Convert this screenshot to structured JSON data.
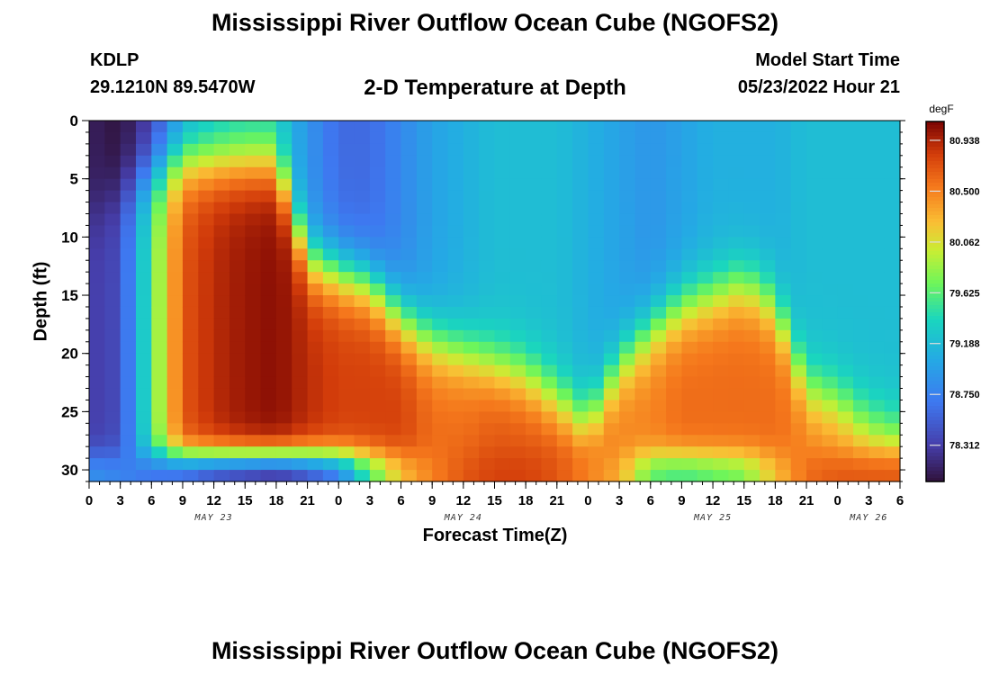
{
  "header": {
    "title": "Mississippi River Outflow Ocean Cube (NGOFS2)",
    "station": "KDLP",
    "coordinates": "29.1210N  89.5470W",
    "subtitle": "2-D Temperature at Depth",
    "model_start_label": "Model Start Time",
    "model_start_value": "05/23/2022 Hour 21"
  },
  "footer": {
    "title": "Mississippi River Outflow Ocean Cube (NGOFS2)"
  },
  "chart_data": {
    "type": "heatmap",
    "xlabel": "Forecast Time(Z)",
    "ylabel": "Depth (ft)",
    "x_ticks": [
      "0",
      "3",
      "6",
      "9",
      "12",
      "15",
      "18",
      "21",
      "0",
      "3",
      "6",
      "9",
      "12",
      "15",
      "18",
      "21",
      "0",
      "3",
      "6",
      "9",
      "12",
      "15",
      "18",
      "21",
      "0",
      "3",
      "6"
    ],
    "date_labels": [
      {
        "label": "MAY 23",
        "hour": 12
      },
      {
        "label": "MAY 24",
        "hour": 36
      },
      {
        "label": "MAY 25",
        "hour": 60
      },
      {
        "label": "MAY 26",
        "hour": 75
      }
    ],
    "x_range_hours": [
      0,
      78
    ],
    "y_ticks": [
      0,
      5,
      10,
      15,
      20,
      25,
      30
    ],
    "y_range_ft": [
      0,
      31
    ],
    "colorbar": {
      "unit": "degF",
      "min": 78.0,
      "max": 81.1,
      "tick_labels": [
        "80.938",
        "80.500",
        "80.062",
        "79.625",
        "79.188",
        "78.750",
        "78.312"
      ]
    },
    "profiles": [
      {
        "hour": 0,
        "top": 78.1,
        "mid": 78.3,
        "thermo": 5,
        "bottom_cool": 78.9
      },
      {
        "hour": 3,
        "top": 78.0,
        "mid": 78.4,
        "thermo": 3,
        "bottom_cool": 78.8
      },
      {
        "hour": 6,
        "top": 78.3,
        "mid": 79.6,
        "thermo": 1.5,
        "bottom_cool": 78.6
      },
      {
        "hour": 9,
        "top": 79.0,
        "mid": 80.7,
        "thermo": 0.5,
        "bottom_cool": 78.5
      },
      {
        "hour": 12,
        "top": 79.2,
        "mid": 80.9,
        "thermo": 0.5,
        "bottom_cool": 78.3
      },
      {
        "hour": 15,
        "top": 79.3,
        "mid": 81.0,
        "thermo": 0.5,
        "bottom_cool": 78.2
      },
      {
        "hour": 18,
        "top": 79.3,
        "mid": 81.05,
        "thermo": 0.6,
        "bottom_cool": 78.1
      },
      {
        "hour": 21,
        "top": 78.9,
        "mid": 80.9,
        "thermo": 9,
        "bottom_cool": 78.3
      },
      {
        "hour": 24,
        "top": 78.6,
        "mid": 80.8,
        "thermo": 10,
        "bottom_cool": 78.6
      },
      {
        "hour": 27,
        "top": 78.6,
        "mid": 80.8,
        "thermo": 11,
        "bottom_cool": 79.5
      },
      {
        "hour": 30,
        "top": 78.8,
        "mid": 80.8,
        "thermo": 14,
        "bottom_cool": 80.2
      },
      {
        "hour": 33,
        "top": 79.0,
        "mid": 80.6,
        "thermo": 16,
        "bottom_cool": 80.5
      },
      {
        "hour": 36,
        "top": 79.1,
        "mid": 80.6,
        "thermo": 17,
        "bottom_cool": 80.7
      },
      {
        "hour": 39,
        "top": 79.2,
        "mid": 80.7,
        "thermo": 18,
        "bottom_cool": 80.8
      },
      {
        "hour": 42,
        "top": 79.2,
        "mid": 80.7,
        "thermo": 19,
        "bottom_cool": 80.8
      },
      {
        "hour": 45,
        "top": 79.2,
        "mid": 80.7,
        "thermo": 21,
        "bottom_cool": 80.7
      },
      {
        "hour": 48,
        "top": 79.1,
        "mid": 80.6,
        "thermo": 23,
        "bottom_cool": 80.5
      },
      {
        "hour": 51,
        "top": 79.0,
        "mid": 80.5,
        "thermo": 18,
        "bottom_cool": 80.3
      },
      {
        "hour": 54,
        "top": 78.9,
        "mid": 80.5,
        "thermo": 15,
        "bottom_cool": 79.6
      },
      {
        "hour": 57,
        "top": 79.0,
        "mid": 80.6,
        "thermo": 13,
        "bottom_cool": 79.5
      },
      {
        "hour": 60,
        "top": 79.1,
        "mid": 80.6,
        "thermo": 12,
        "bottom_cool": 79.6
      },
      {
        "hour": 63,
        "top": 79.1,
        "mid": 80.6,
        "thermo": 11,
        "bottom_cool": 79.7
      },
      {
        "hour": 66,
        "top": 79.1,
        "mid": 80.6,
        "thermo": 13,
        "bottom_cool": 80.2
      },
      {
        "hour": 69,
        "top": 79.2,
        "mid": 80.5,
        "thermo": 20,
        "bottom_cool": 80.6
      },
      {
        "hour": 72,
        "top": 79.2,
        "mid": 80.4,
        "thermo": 21,
        "bottom_cool": 80.7
      },
      {
        "hour": 75,
        "top": 79.2,
        "mid": 80.3,
        "thermo": 23,
        "bottom_cool": 80.7
      },
      {
        "hour": 78,
        "top": 79.2,
        "mid": 80.3,
        "thermo": 24,
        "bottom_cool": 80.7
      }
    ]
  }
}
